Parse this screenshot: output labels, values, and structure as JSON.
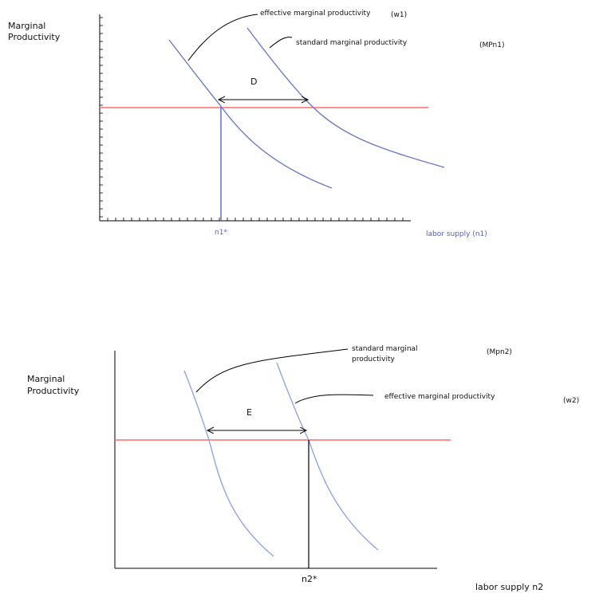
{
  "colors": {
    "curve_top": "#6b78c8",
    "curve_bottom": "#8fa6e6",
    "horizontal_line": "#ff6b6b",
    "axis": "#000000",
    "blue_text": "#5060c0"
  },
  "diagram_top": {
    "y_axis_label_line1": "Marginal",
    "y_axis_label_line2": "Productivity",
    "effective_curve_label": "effective marginal productivity",
    "effective_curve_tag": "(w1)",
    "standard_curve_label": "standard marginal productivity",
    "standard_curve_tag": "(MPn1)",
    "gap_label": "D",
    "x_marker_label": "n1*",
    "x_axis_label": "labor supply (n1)"
  },
  "diagram_bottom": {
    "y_axis_label_line1": "Marginal",
    "y_axis_label_line2": "Productivity",
    "standard_curve_label_line1": "standard marginal",
    "standard_curve_label_line2": "productivity",
    "standard_curve_tag": "(Mpn2)",
    "effective_curve_label": "effective marginal productivity",
    "effective_curve_tag": "(w2)",
    "gap_label": "E",
    "x_marker_label": "n2*",
    "x_axis_label": "labor supply n2"
  }
}
